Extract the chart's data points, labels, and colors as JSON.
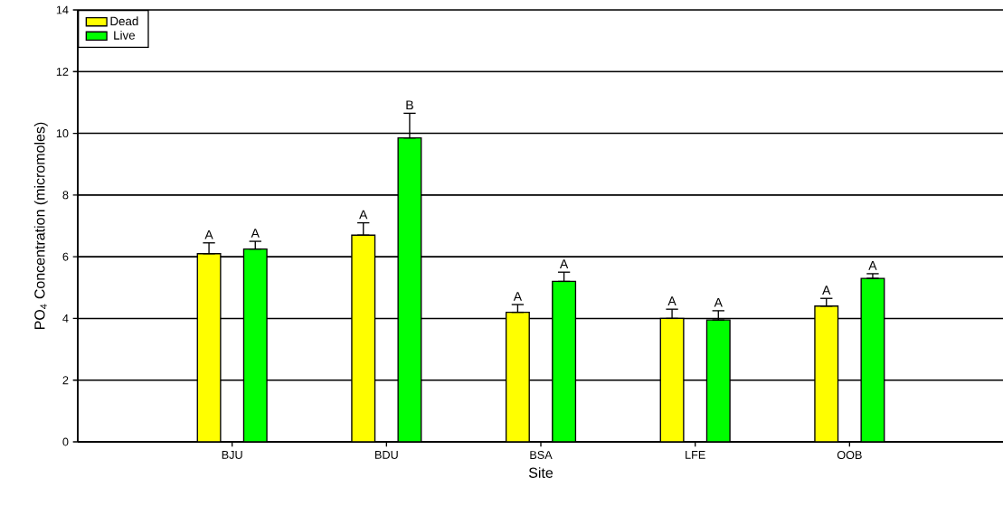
{
  "chart_data": {
    "type": "bar",
    "xlabel": "Site",
    "ylabel": "PO$_{4}$ Concentration (micromoles)",
    "categories": [
      "BJU",
      "BDU",
      "BSA",
      "LFE",
      "OOB"
    ],
    "series": [
      {
        "name": "Dead",
        "color": "#ffff00",
        "values": [
          6.1,
          6.7,
          4.2,
          4.0,
          4.4
        ],
        "errors": [
          [
            6.1,
            6.45
          ],
          [
            6.7,
            7.1
          ],
          [
            4.2,
            4.45
          ],
          [
            4.0,
            4.3
          ],
          [
            4.4,
            4.65
          ]
        ]
      },
      {
        "name": "Live",
        "color": "#00ff00",
        "values": [
          6.25,
          9.85,
          5.2,
          3.95,
          5.3
        ],
        "errors": [
          [
            6.25,
            6.5
          ],
          [
            9.85,
            10.65
          ],
          [
            5.2,
            5.5
          ],
          [
            3.95,
            4.25
          ],
          [
            5.3,
            5.45
          ]
        ]
      }
    ],
    "annotations": [
      "A",
      "A",
      "A",
      "B",
      "A",
      "A",
      "A",
      "A",
      "A",
      "A"
    ],
    "ylim": [
      0,
      14
    ],
    "yticks": [
      0,
      2,
      4,
      6,
      8,
      10,
      12,
      14
    ],
    "grid": "y",
    "legend": "top left"
  }
}
